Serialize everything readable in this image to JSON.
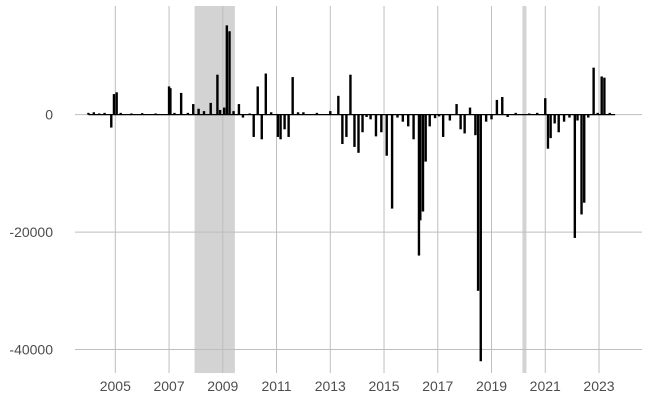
{
  "chart_data": {
    "type": "bar",
    "title": "",
    "xlabel": "",
    "ylabel": "",
    "xlim": [
      2003.5,
      2024.6
    ],
    "ylim": [
      -44000,
      18500
    ],
    "grid": true,
    "legend": "none",
    "colors": {
      "bars": "#000000",
      "shade": "#d3d3d3",
      "grid": "#bebebe",
      "tick_text": "#4d4d4d"
    },
    "x_ticks": [
      {
        "value": 2005,
        "label": "2005"
      },
      {
        "value": 2007,
        "label": "2007"
      },
      {
        "value": 2009,
        "label": "2009"
      },
      {
        "value": 2011,
        "label": "2011"
      },
      {
        "value": 2013,
        "label": "2013"
      },
      {
        "value": 2015,
        "label": "2015"
      },
      {
        "value": 2017,
        "label": "2017"
      },
      {
        "value": 2019,
        "label": "2019"
      },
      {
        "value": 2021,
        "label": "2021"
      },
      {
        "value": 2023,
        "label": "2023"
      }
    ],
    "y_ticks": [
      {
        "value": 0,
        "label": "0"
      },
      {
        "value": -20000,
        "label": "-20000"
      },
      {
        "value": -40000,
        "label": "-40000"
      }
    ],
    "shaded_periods": [
      {
        "start": 2007.95,
        "end": 2009.45
      },
      {
        "start": 2020.15,
        "end": 2020.3
      }
    ],
    "x": [
      2004.0,
      2004.2,
      2004.4,
      2004.6,
      2004.85,
      2004.95,
      2005.05,
      2005.2,
      2005.6,
      2006.0,
      2006.5,
      2007.0,
      2007.05,
      2007.2,
      2007.45,
      2007.7,
      2007.9,
      2008.1,
      2008.3,
      2008.55,
      2008.8,
      2008.9,
      2009.05,
      2009.15,
      2009.25,
      2009.4,
      2009.6,
      2009.75,
      2010.0,
      2010.15,
      2010.3,
      2010.45,
      2010.6,
      2010.8,
      2011.05,
      2011.15,
      2011.3,
      2011.45,
      2011.6,
      2011.8,
      2012.0,
      2012.5,
      2013.0,
      2013.3,
      2013.45,
      2013.6,
      2013.75,
      2013.9,
      2014.05,
      2014.2,
      2014.35,
      2014.5,
      2014.7,
      2014.9,
      2015.1,
      2015.3,
      2015.5,
      2015.7,
      2015.9,
      2016.1,
      2016.3,
      2016.35,
      2016.45,
      2016.55,
      2016.7,
      2016.9,
      2017.05,
      2017.2,
      2017.45,
      2017.7,
      2017.85,
      2018.0,
      2018.2,
      2018.4,
      2018.5,
      2018.6,
      2018.8,
      2019.0,
      2019.2,
      2019.4,
      2019.6,
      2019.9,
      2020.4,
      2020.7,
      2021.0,
      2021.1,
      2021.2,
      2021.35,
      2021.5,
      2021.7,
      2021.9,
      2022.1,
      2022.2,
      2022.35,
      2022.45,
      2022.6,
      2022.8,
      2022.95,
      2023.1,
      2023.2,
      2023.4
    ],
    "values": [
      300,
      400,
      200,
      300,
      -2200,
      3500,
      3800,
      300,
      200,
      250,
      200,
      4800,
      4500,
      300,
      3700,
      300,
      1800,
      1000,
      600,
      2000,
      6800,
      800,
      1200,
      15200,
      14200,
      600,
      1800,
      -500,
      200,
      -3800,
      4800,
      -4200,
      7000,
      400,
      -3800,
      -4200,
      -2500,
      -3800,
      6400,
      400,
      400,
      300,
      600,
      3200,
      -5000,
      -3800,
      6800,
      -5500,
      -6500,
      -3000,
      -400,
      -800,
      -3700,
      -3000,
      -7000,
      -16000,
      -500,
      -1200,
      -2000,
      -4200,
      -24000,
      -18000,
      -16500,
      -8000,
      -2000,
      -600,
      -300,
      -3800,
      -1000,
      1800,
      -2500,
      -3200,
      1200,
      -3500,
      -30000,
      -42000,
      -1200,
      -800,
      2500,
      3000,
      -400,
      300,
      200,
      300,
      2800,
      -5800,
      -4000,
      -1500,
      -3000,
      -1200,
      -500,
      -21000,
      -1000,
      -17000,
      -15000,
      -500,
      8000,
      300,
      6500,
      6300,
      300
    ]
  }
}
